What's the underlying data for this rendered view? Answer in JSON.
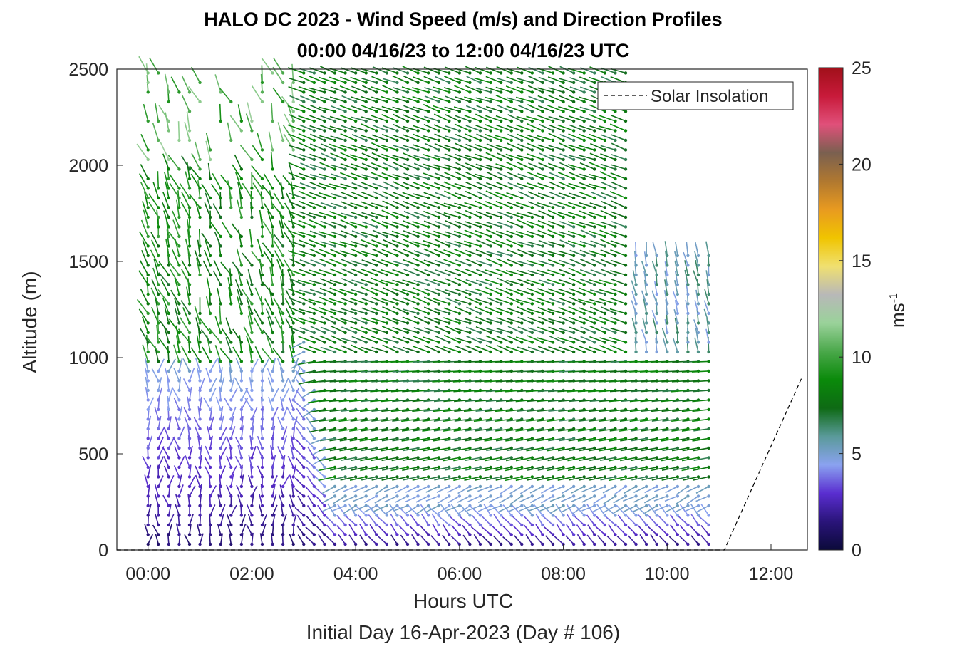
{
  "chart_data": {
    "type": "scatter",
    "title": "HALO DC 2023 - Wind Speed (m/s) and Direction Profiles",
    "subtitle": "00:00 04/16/23 to 12:00 04/16/23  UTC",
    "xlabel": "Hours UTC",
    "ylabel": "Altitude (m)",
    "footer": "Initial Day 16-Apr-2023 (Day # 106)",
    "xlim": [
      -0.6,
      12.7
    ],
    "ylim": [
      0,
      2500
    ],
    "x_tick_labels": [
      "00:00",
      "02:00",
      "04:00",
      "06:00",
      "08:00",
      "10:00",
      "12:00"
    ],
    "x_tick_values": [
      0,
      2,
      4,
      6,
      8,
      10,
      12
    ],
    "y_tick_values": [
      0,
      500,
      1000,
      1500,
      2000,
      2500
    ],
    "y_tick_labels": [
      "0",
      "500",
      "1000",
      "1500",
      "2000",
      "2500"
    ],
    "legend": {
      "label": "Solar Insolation",
      "placement": "top-right",
      "style": "dashed black line"
    },
    "colorbar": {
      "label": "ms",
      "label_exponent": "-1",
      "range": [
        0,
        25
      ],
      "tick_values": [
        0,
        5,
        10,
        15,
        20,
        25
      ],
      "tick_labels": [
        "0",
        "5",
        "10",
        "15",
        "20",
        "25"
      ],
      "colors": [
        "#0b0a3a",
        "#2a147a",
        "#5a2ed0",
        "#8aa2f0",
        "#5a9a9a",
        "#0e6a14",
        "#0a8a0a",
        "#4aa84a",
        "#9ad29a",
        "#b8b8b8",
        "#f0e070",
        "#f0c400",
        "#e89a20",
        "#b07830",
        "#7a6050",
        "#e0507a",
        "#c81a3a",
        "#a0101a"
      ]
    },
    "solar_insolation": {
      "x": [
        -0.6,
        11.1,
        12.6
      ],
      "y": [
        0,
        0,
        900
      ]
    },
    "wind_profiles": {
      "time_start_h": 0.0,
      "time_end_h": 10.8,
      "time_step_h": 0.2,
      "altitude_start_m": 30,
      "altitude_end_m": 2500,
      "altitude_step_m": 50,
      "notes": "Barbs colored by wind speed; light winds (<5 m/s) below ~1000 m before 03:00 and below ~200 m after 03:00; 6-10 m/s green winds aloft."
    }
  }
}
